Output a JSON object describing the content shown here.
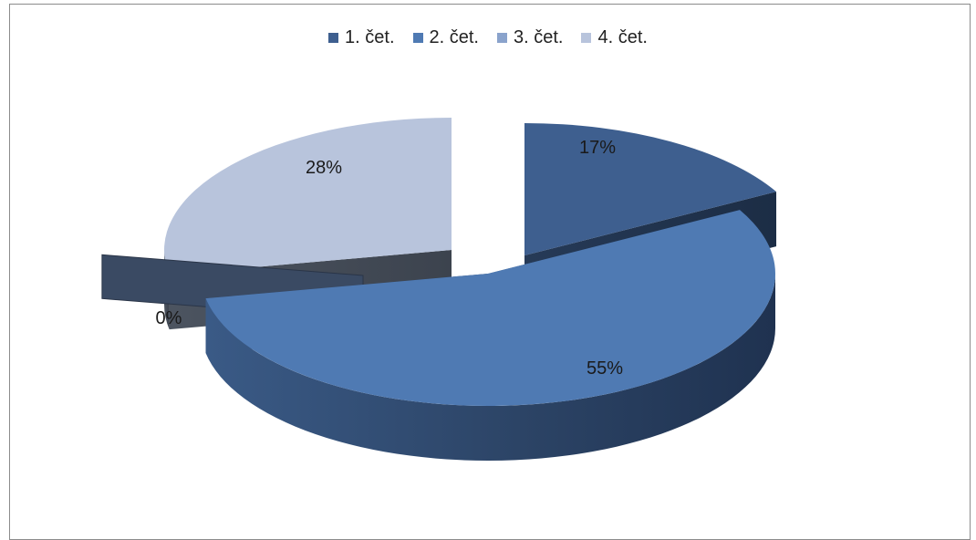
{
  "chart_data": {
    "type": "pie",
    "style": "3d-exploded",
    "legend_position": "top",
    "categories": [
      "1. čet.",
      "2. čet.",
      "3. čet.",
      "4. čet."
    ],
    "values": [
      17,
      55,
      0,
      28
    ],
    "data_labels": [
      "17%",
      "55%",
      "0%",
      "28%"
    ],
    "colors": [
      "#3e5f8f",
      "#4f7ab3",
      "#3a4a63",
      "#b8c4dc"
    ],
    "legend_colors": [
      "#3e5f8f",
      "#4f7ab3",
      "#8aa3cc",
      "#b8c4dc"
    ]
  }
}
